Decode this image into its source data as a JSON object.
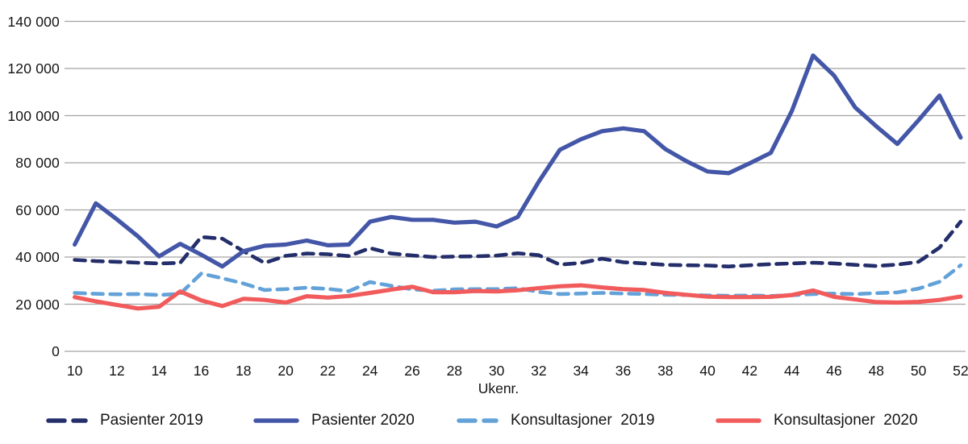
{
  "chart_data": {
    "type": "line",
    "title": "",
    "x_label": "Ukenr.",
    "ylabel": "",
    "x_start": 10,
    "x_step": 1,
    "x_ticks": [
      10,
      12,
      14,
      16,
      18,
      20,
      22,
      24,
      26,
      28,
      30,
      32,
      34,
      36,
      38,
      40,
      42,
      44,
      46,
      48,
      50,
      52
    ],
    "ylim": [
      0,
      140000
    ],
    "grid": "horizontal",
    "legend_position": "bottom",
    "y_ticks": [
      {
        "value": 0,
        "label": "0"
      },
      {
        "value": 20000,
        "label": "20 000"
      },
      {
        "value": 40000,
        "label": "40 000"
      },
      {
        "value": 60000,
        "label": "60 000"
      },
      {
        "value": 80000,
        "label": "80 000"
      },
      {
        "value": 100000,
        "label": "100 000"
      },
      {
        "value": 120000,
        "label": "120 000"
      },
      {
        "value": 140000,
        "label": "140 000"
      }
    ],
    "series": [
      {
        "name": "Pasienter 2019",
        "color": "#232e6b",
        "dashed": true,
        "values": [
          38800,
          38300,
          38000,
          37600,
          37300,
          37500,
          48500,
          47800,
          42500,
          37500,
          40500,
          41500,
          41200,
          40400,
          43800,
          41500,
          40700,
          40000,
          40200,
          40300,
          40600,
          41600,
          40800,
          36800,
          37500,
          39300,
          37800,
          37300,
          36700,
          36500,
          36400,
          36000,
          36500,
          37000,
          37300,
          37600,
          37300,
          36700,
          36200,
          36800,
          38000,
          44000,
          55000
        ]
      },
      {
        "name": "Pasienter 2020",
        "color": "#4356a7",
        "dashed": false,
        "values": [
          45300,
          62800,
          56000,
          48800,
          40300,
          45600,
          41000,
          36000,
          42500,
          44800,
          45300,
          47000,
          45000,
          45300,
          55000,
          57000,
          55800,
          55800,
          54600,
          55000,
          53000,
          57000,
          72000,
          85500,
          90000,
          93400,
          94600,
          93400,
          85800,
          80700,
          76300,
          75600,
          79800,
          84200,
          102000,
          125500,
          117000,
          103500,
          95500,
          88000,
          98000,
          108500,
          90700
        ]
      },
      {
        "name": "Konsultasjoner  2019",
        "color": "#63a2d9",
        "dashed": true,
        "values": [
          24800,
          24400,
          24200,
          24300,
          23900,
          24400,
          33000,
          31000,
          28800,
          26000,
          26400,
          27000,
          26500,
          25500,
          29400,
          27800,
          26300,
          25700,
          26300,
          26400,
          26400,
          26800,
          25200,
          24300,
          24500,
          24800,
          24500,
          24300,
          24000,
          23900,
          23700,
          23600,
          23700,
          23500,
          23800,
          24300,
          24500,
          24300,
          24700,
          25000,
          26600,
          29500,
          36500
        ]
      },
      {
        "name": "Konsultasjoner  2020",
        "color": "#f15b5c",
        "dashed": false,
        "values": [
          23000,
          21200,
          19700,
          18200,
          18900,
          25400,
          21600,
          19200,
          22300,
          21800,
          20700,
          23400,
          22800,
          23500,
          24800,
          26200,
          27400,
          25100,
          25100,
          25600,
          25400,
          25900,
          26800,
          27600,
          28000,
          27100,
          26400,
          26000,
          24800,
          24000,
          23200,
          23000,
          23000,
          23100,
          23900,
          25800,
          23100,
          22000,
          20900,
          20700,
          21000,
          21800,
          23200
        ]
      }
    ]
  }
}
